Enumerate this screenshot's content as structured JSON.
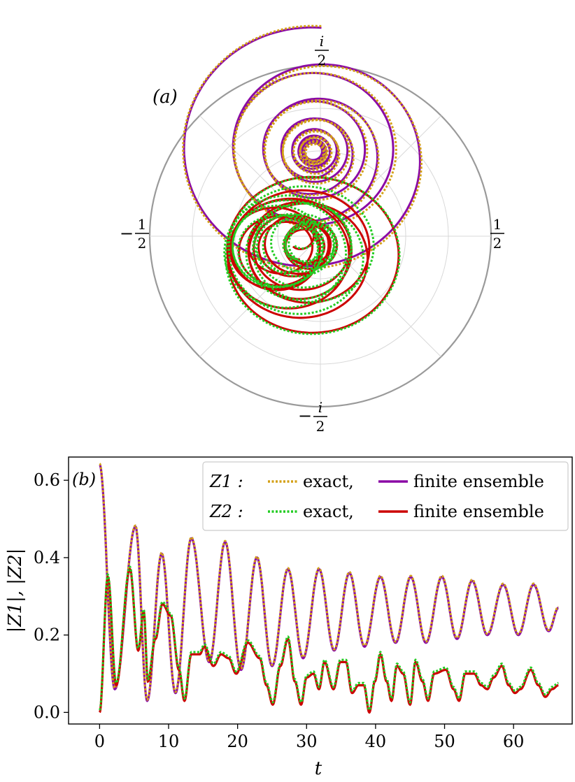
{
  "chart_data": [
    {
      "panel": "(a)",
      "type": "line",
      "subtype": "polar",
      "title": "",
      "angular_labels": {
        "top": "i/2",
        "right": "1/2",
        "bottom": "-i/2",
        "left": "-1/2"
      },
      "radial_max": 0.5,
      "grid": true,
      "series": [
        {
          "name": "Z1 finite ensemble",
          "color": "#8b0aa5",
          "style": "solid",
          "center": [
            -0.02,
            0.25
          ],
          "start": [
            0.0,
            0.58
          ],
          "description_points": [
            [
              0.0,
              0.58
            ],
            [
              -0.38,
              0.35
            ],
            [
              -0.25,
              0.0
            ],
            [
              0.1,
              0.05
            ],
            [
              0.25,
              0.3
            ],
            [
              -0.02,
              0.25
            ]
          ]
        },
        {
          "name": "Z1 exact",
          "color": "#d4a017",
          "style": "dotted",
          "center": [
            -0.02,
            0.25
          ],
          "start": [
            0.0,
            0.58
          ]
        },
        {
          "name": "Z2 finite ensemble",
          "color": "#cc0000",
          "style": "solid",
          "center": [
            -0.08,
            -0.01
          ],
          "start": [
            0.0,
            0.0
          ]
        },
        {
          "name": "Z2 exact",
          "color": "#22cc22",
          "style": "dotted",
          "center": [
            -0.08,
            -0.01
          ],
          "start": [
            0.0,
            0.0
          ]
        }
      ]
    },
    {
      "panel": "(b)",
      "type": "line",
      "title": "",
      "xlabel": "t",
      "ylabel": "|Z1|, |Z2|",
      "xlim": [
        -4.5,
        68.5
      ],
      "ylim": [
        -0.03,
        0.66
      ],
      "xticks": [
        0,
        10,
        20,
        30,
        40,
        50,
        60
      ],
      "yticks": [
        0.0,
        0.2,
        0.4,
        0.6
      ],
      "xtick_labels": [
        "0",
        "10",
        "20",
        "30",
        "40",
        "50",
        "60"
      ],
      "ytick_labels": [
        "0.0",
        "0.2",
        "0.4",
        "0.6"
      ],
      "legend_position": "top-right",
      "legend": [
        {
          "prefix": "Z1 :",
          "entries": [
            "exact,",
            "finite ensemble"
          ]
        },
        {
          "prefix": "Z2 :",
          "entries": [
            "exact,",
            "finite ensemble"
          ]
        }
      ],
      "series": [
        {
          "name": "Z1 finite ensemble",
          "color": "#8b0aa5",
          "style": "solid",
          "peaks": [
            [
              0,
              0.64
            ],
            [
              5.2,
              0.48
            ],
            [
              9.0,
              0.41
            ],
            [
              13.3,
              0.45
            ],
            [
              18.2,
              0.44
            ],
            [
              22.8,
              0.4
            ],
            [
              27.3,
              0.37
            ],
            [
              31.8,
              0.37
            ],
            [
              36.2,
              0.36
            ],
            [
              40.7,
              0.35
            ],
            [
              45.1,
              0.35
            ],
            [
              49.6,
              0.35
            ],
            [
              54.0,
              0.34
            ],
            [
              58.5,
              0.33
            ],
            [
              62.9,
              0.33
            ]
          ],
          "troughs": [
            [
              2.2,
              0.06
            ],
            [
              6.9,
              0.03
            ],
            [
              11.0,
              0.05
            ],
            [
              15.9,
              0.13
            ],
            [
              20.5,
              0.11
            ],
            [
              25.0,
              0.12
            ],
            [
              29.5,
              0.14
            ],
            [
              34.0,
              0.16
            ],
            [
              38.4,
              0.17
            ],
            [
              42.9,
              0.18
            ],
            [
              47.3,
              0.18
            ],
            [
              51.8,
              0.19
            ],
            [
              56.2,
              0.2
            ],
            [
              60.7,
              0.2
            ],
            [
              65.1,
              0.21
            ]
          ],
          "end": [
            66.5,
            0.27
          ]
        },
        {
          "name": "Z1 exact",
          "color": "#d4a017",
          "style": "dotted"
        },
        {
          "name": "Z2 finite ensemble",
          "color": "#cc0000",
          "style": "solid",
          "points": [
            [
              0,
              0.0
            ],
            [
              1.2,
              0.35
            ],
            [
              2.4,
              0.07
            ],
            [
              4.4,
              0.37
            ],
            [
              5.6,
              0.16
            ],
            [
              6.4,
              0.26
            ],
            [
              7.0,
              0.08
            ],
            [
              8.1,
              0.19
            ],
            [
              9.1,
              0.28
            ],
            [
              10.3,
              0.25
            ],
            [
              11.5,
              0.11
            ],
            [
              12.3,
              0.03
            ],
            [
              13.3,
              0.15
            ],
            [
              14.5,
              0.15
            ],
            [
              15.2,
              0.17
            ],
            [
              16.5,
              0.12
            ],
            [
              17.6,
              0.15
            ],
            [
              18.7,
              0.14
            ],
            [
              19.8,
              0.1
            ],
            [
              21.5,
              0.18
            ],
            [
              23.2,
              0.14
            ],
            [
              24.2,
              0.07
            ],
            [
              25.1,
              0.02
            ],
            [
              26.2,
              0.12
            ],
            [
              27.3,
              0.19
            ],
            [
              28.3,
              0.08
            ],
            [
              29.2,
              0.02
            ],
            [
              30.0,
              0.09
            ],
            [
              31.0,
              0.1
            ],
            [
              31.8,
              0.06
            ],
            [
              32.6,
              0.13
            ],
            [
              33.9,
              0.06
            ],
            [
              34.9,
              0.13
            ],
            [
              35.7,
              0.13
            ],
            [
              36.6,
              0.05
            ],
            [
              37.5,
              0.07
            ],
            [
              38.3,
              0.07
            ],
            [
              39.1,
              0.0
            ],
            [
              39.9,
              0.08
            ],
            [
              40.7,
              0.15
            ],
            [
              41.6,
              0.08
            ],
            [
              42.3,
              0.03
            ],
            [
              43.1,
              0.12
            ],
            [
              44.0,
              0.1
            ],
            [
              45.0,
              0.02
            ],
            [
              45.8,
              0.13
            ],
            [
              46.8,
              0.08
            ],
            [
              47.6,
              0.03
            ],
            [
              48.5,
              0.1
            ],
            [
              50.2,
              0.11
            ],
            [
              51.3,
              0.06
            ],
            [
              52.1,
              0.03
            ],
            [
              53.0,
              0.1
            ],
            [
              54.3,
              0.1
            ],
            [
              55.3,
              0.07
            ],
            [
              56.2,
              0.06
            ],
            [
              57.1,
              0.09
            ],
            [
              58.3,
              0.12
            ],
            [
              59.3,
              0.07
            ],
            [
              60.2,
              0.05
            ],
            [
              61.0,
              0.06
            ],
            [
              62.5,
              0.11
            ],
            [
              63.6,
              0.07
            ],
            [
              64.6,
              0.04
            ],
            [
              65.6,
              0.06
            ],
            [
              66.5,
              0.07
            ]
          ]
        },
        {
          "name": "Z2 exact",
          "color": "#22cc22",
          "style": "dotted"
        }
      ]
    }
  ],
  "labels": {
    "panel_a": "(a)",
    "panel_b": "(b)",
    "x_axis": "t",
    "y_axis": "|Z1|, |Z2|",
    "legend_row1_prefix": "Z1 :",
    "legend_row2_prefix": "Z2 :",
    "legend_exact": "exact,",
    "legend_finite": "finite ensemble"
  }
}
